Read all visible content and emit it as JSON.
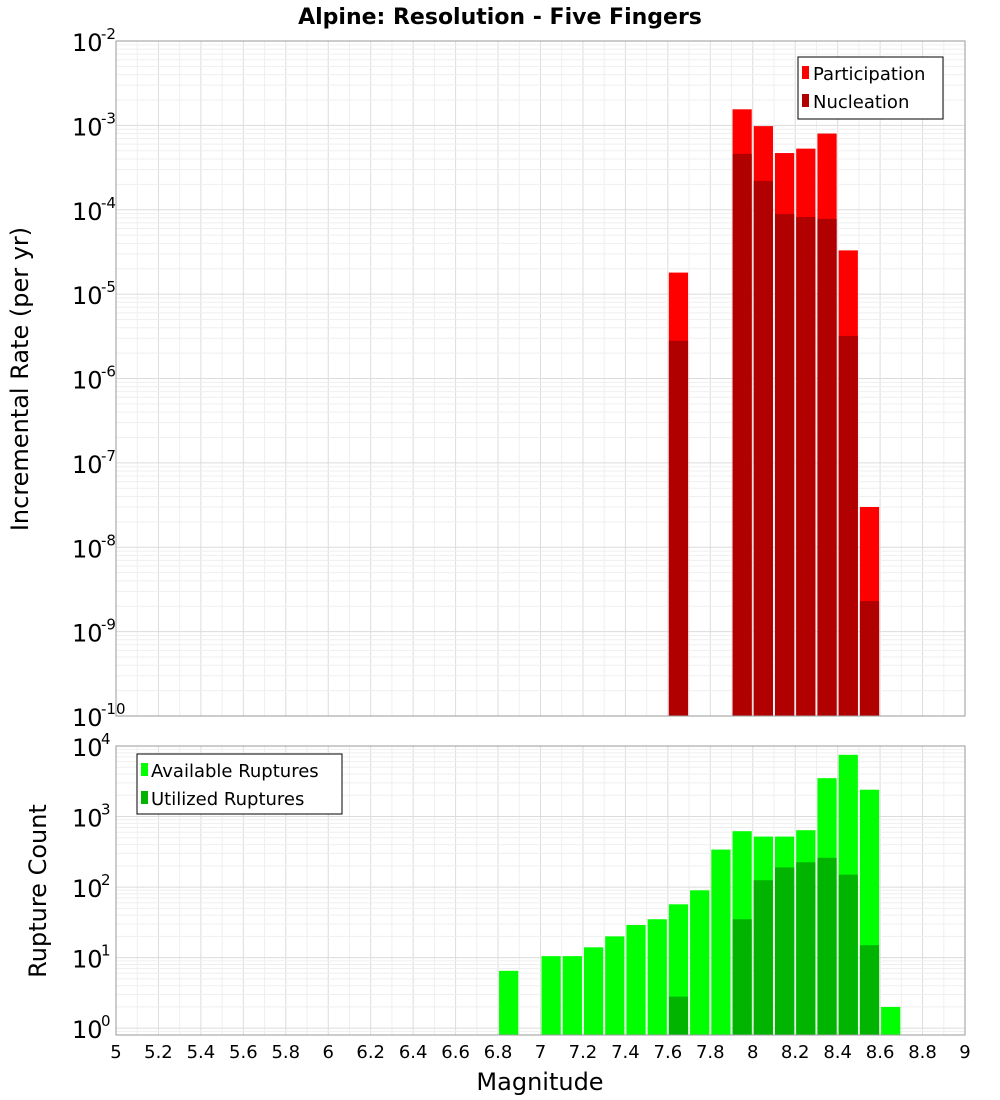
{
  "chart_data": [
    {
      "type": "bar",
      "title": "Alpine: Resolution - Five Fingers",
      "xlabel": "",
      "ylabel": "Incremental Rate (per yr)",
      "yscale": "log",
      "ylim": [
        1e-10,
        0.01
      ],
      "xlim": [
        5,
        9
      ],
      "bin_width": 0.1,
      "grid": true,
      "legend_position": "top-right",
      "series": [
        {
          "name": "Participation",
          "color": "#ff0000",
          "x": [
            7.65,
            7.95,
            8.05,
            8.15,
            8.25,
            8.35,
            8.45,
            8.55
          ],
          "values": [
            1.8e-05,
            0.00155,
            0.00098,
            0.00047,
            0.00053,
            0.0008,
            3.3e-05,
            3e-08
          ]
        },
        {
          "name": "Nucleation",
          "color": "#b00000",
          "x": [
            7.65,
            7.95,
            8.05,
            8.15,
            8.25,
            8.35,
            8.45,
            8.55
          ],
          "values": [
            2.8e-06,
            0.00046,
            0.00022,
            8.9e-05,
            8.2e-05,
            7.8e-05,
            3.2e-06,
            2.3e-09
          ]
        }
      ]
    },
    {
      "type": "bar",
      "title": "",
      "xlabel": "Magnitude",
      "ylabel": "Rupture Count",
      "yscale": "log",
      "ylim": [
        0.8,
        10000
      ],
      "xlim": [
        5,
        9
      ],
      "bin_width": 0.1,
      "grid": true,
      "legend_position": "top-left",
      "series": [
        {
          "name": "Available Ruptures",
          "color": "#00ff00",
          "x": [
            6.85,
            7.05,
            7.15,
            7.25,
            7.35,
            7.45,
            7.55,
            7.65,
            7.75,
            7.85,
            7.95,
            8.05,
            8.15,
            8.25,
            8.35,
            8.45,
            8.55,
            8.65
          ],
          "values": [
            6.5,
            10.5,
            10.5,
            14,
            20,
            29,
            35,
            57,
            90,
            340,
            620,
            520,
            520,
            640,
            3500,
            7500,
            2400,
            2
          ]
        },
        {
          "name": "Utilized Ruptures",
          "color": "#00b400",
          "x": [
            7.65,
            7.95,
            8.05,
            8.15,
            8.25,
            8.35,
            8.45,
            8.55
          ],
          "values": [
            2.8,
            35,
            125,
            190,
            225,
            260,
            150,
            15
          ]
        }
      ]
    }
  ],
  "axes": {
    "x_ticks": [
      "5",
      "5.2",
      "5.4",
      "5.6",
      "5.8",
      "6",
      "6.2",
      "6.4",
      "6.6",
      "6.8",
      "7",
      "7.2",
      "7.4",
      "7.6",
      "7.8",
      "8",
      "8.2",
      "8.4",
      "8.6",
      "8.8",
      "9"
    ],
    "top_y_exponents": [
      "-10",
      "-9",
      "-8",
      "-7",
      "-6",
      "-5",
      "-4",
      "-3",
      "-2"
    ],
    "bottom_y_exponents": [
      "0",
      "1",
      "2",
      "3",
      "4"
    ],
    "y_base": "10"
  }
}
